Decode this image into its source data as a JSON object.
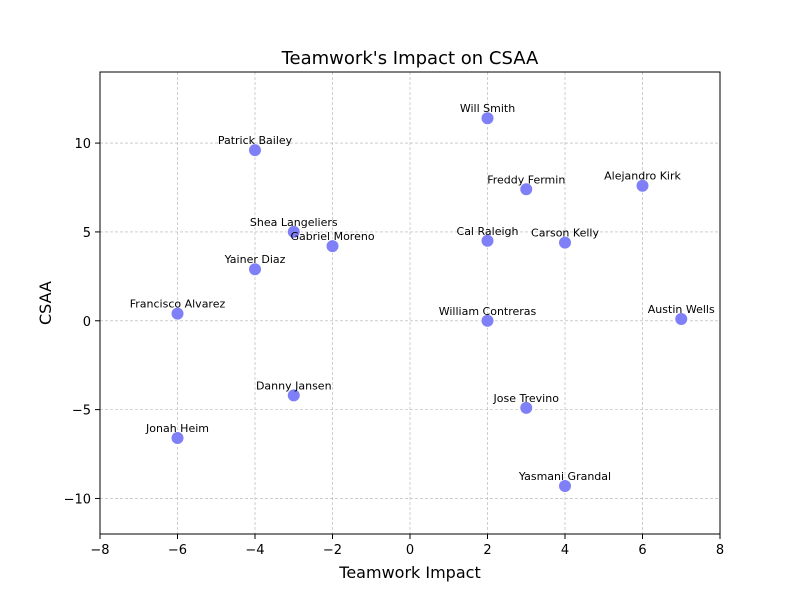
{
  "chart_data": {
    "type": "scatter",
    "title": "Teamwork's Impact on CSAA",
    "xlabel": "Teamwork Impact",
    "ylabel": "CSAA",
    "xlim": [
      -8,
      8
    ],
    "ylim": [
      -12,
      14
    ],
    "xticks": [
      -8,
      -6,
      -4,
      -2,
      0,
      2,
      4,
      6,
      8
    ],
    "yticks": [
      -10,
      -5,
      0,
      5,
      10
    ],
    "grid": true,
    "point_color": "#7f7ff7",
    "points": [
      {
        "name": "Will Smith",
        "x": 2,
        "y": 11.4
      },
      {
        "name": "Patrick Bailey",
        "x": -4,
        "y": 9.6
      },
      {
        "name": "Freddy Fermin",
        "x": 3,
        "y": 7.4
      },
      {
        "name": "Alejandro Kirk",
        "x": 6,
        "y": 7.6
      },
      {
        "name": "Shea Langeliers",
        "x": -3,
        "y": 5.0
      },
      {
        "name": "Gabriel Moreno",
        "x": -2,
        "y": 4.2
      },
      {
        "name": "Cal Raleigh",
        "x": 2,
        "y": 4.5
      },
      {
        "name": "Carson Kelly",
        "x": 4,
        "y": 4.4
      },
      {
        "name": "Yainer Diaz",
        "x": -4,
        "y": 2.9
      },
      {
        "name": "Francisco Alvarez",
        "x": -6,
        "y": 0.4
      },
      {
        "name": "William Contreras",
        "x": 2,
        "y": 0.0
      },
      {
        "name": "Austin Wells",
        "x": 7,
        "y": 0.1
      },
      {
        "name": "Danny Jansen",
        "x": -3,
        "y": -4.2
      },
      {
        "name": "Jose Trevino",
        "x": 3,
        "y": -4.9
      },
      {
        "name": "Jonah Heim",
        "x": -6,
        "y": -6.6
      },
      {
        "name": "Yasmani Grandal",
        "x": 4,
        "y": -9.3
      }
    ]
  }
}
